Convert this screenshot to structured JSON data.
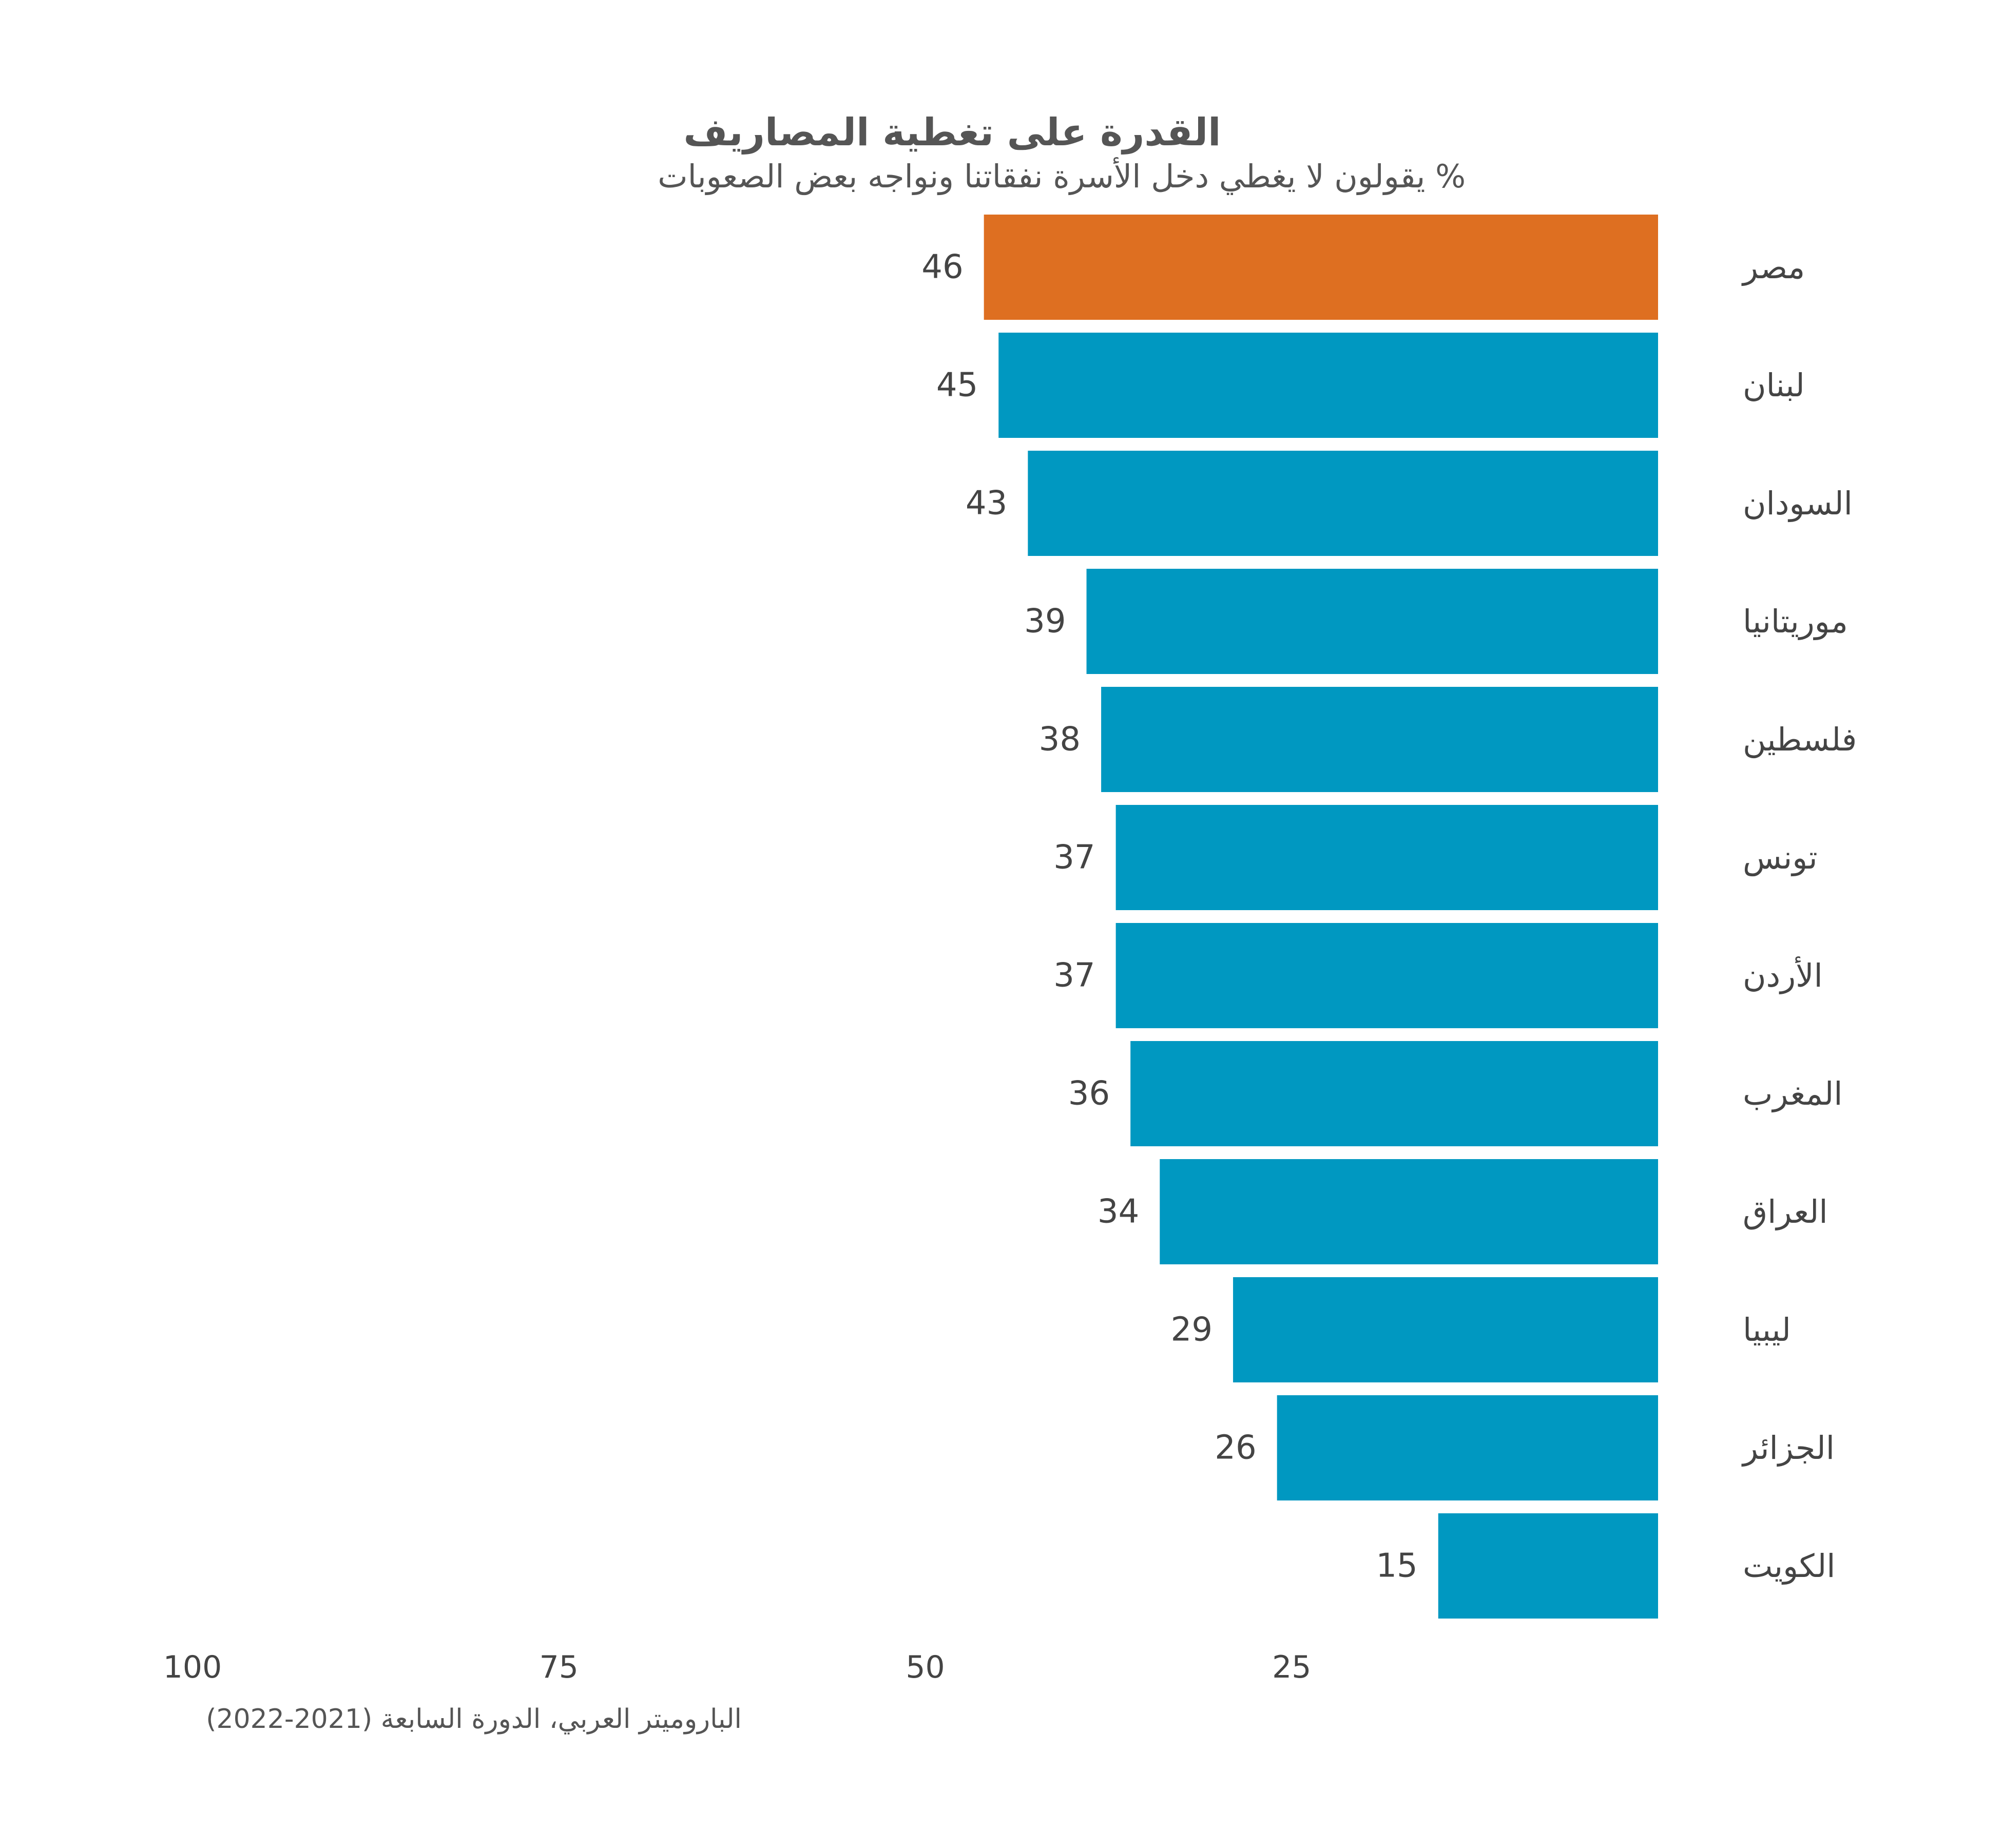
{
  "chart_data": {
    "type": "bar",
    "orientation": "horizontal",
    "direction": "right-to-left",
    "title": "القدرة على تغطية المصاريف",
    "subtitle": "% يقولون لا يغطي دخل الأسرة نفقاتنا ونواجه بعض الصعوبات",
    "source": "الباروميتر العربي، الدورة السابعة (2021-2022)",
    "categories": [
      "مصر",
      "لبنان",
      "السودان",
      "موريتانيا",
      "فلسطين",
      "تونس",
      "الأردن",
      "المغرب",
      "العراق",
      "ليبيا",
      "الجزائر",
      "الكويت"
    ],
    "values": [
      46,
      45,
      43,
      39,
      38,
      37,
      37,
      36,
      34,
      29,
      26,
      15
    ],
    "value_labels": [
      "46",
      "45",
      "43",
      "39",
      "38",
      "37",
      "37",
      "36",
      "34",
      "29",
      "26",
      "15"
    ],
    "highlight_index": 0,
    "colors": {
      "highlight": "#DE6F21",
      "default": "#0098C1"
    },
    "xlim": [
      0,
      100
    ],
    "x_ticks": [
      100,
      75,
      50,
      25
    ],
    "x_tick_labels": [
      "100",
      "75",
      "50",
      "25"
    ],
    "grid": false,
    "legend": "none"
  }
}
